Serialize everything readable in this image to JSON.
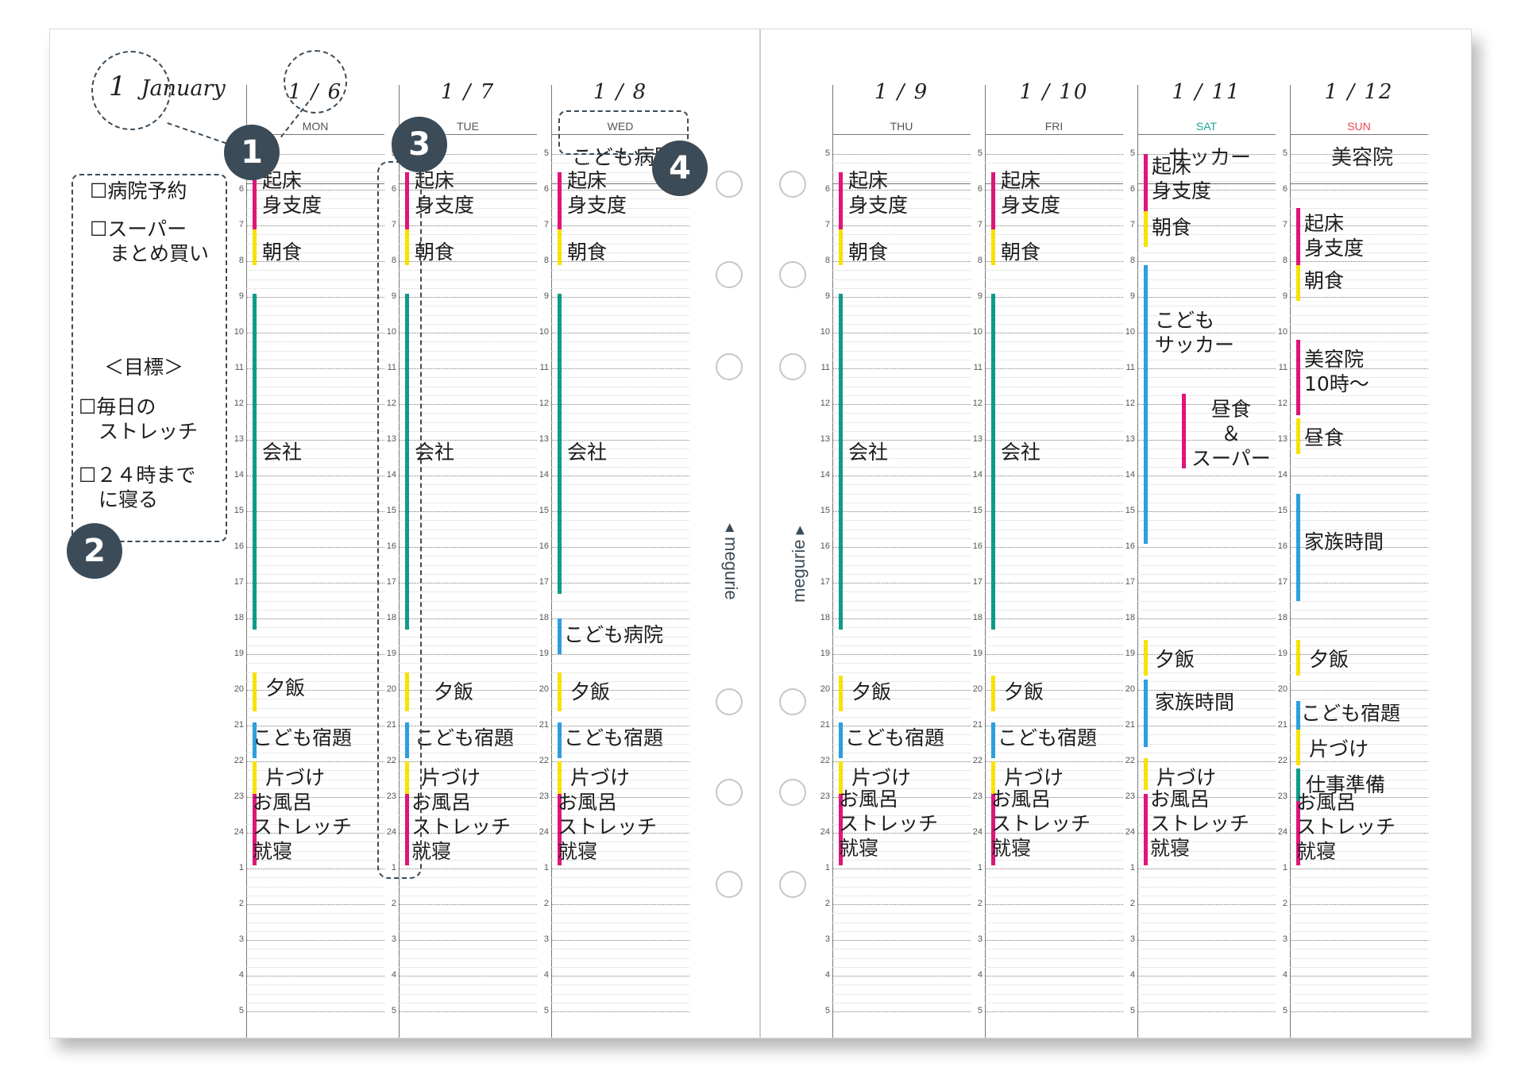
{
  "month": {
    "number": "1",
    "name": "January"
  },
  "brand": "megurie",
  "hour_labels": [
    "5",
    "6",
    "7",
    "8",
    "9",
    "10",
    "11",
    "12",
    "13",
    "14",
    "15",
    "16",
    "17",
    "18",
    "19",
    "20",
    "21",
    "22",
    "23",
    "24",
    "1",
    "2",
    "3",
    "4",
    "5"
  ],
  "sidebar": {
    "todos": [
      "☐病院予約",
      "☐スーパー\n　まとめ買い"
    ],
    "goal_title": "＜目標＞",
    "goals": [
      "☐毎日の\n　ストレッチ",
      "☐２４時まで\n　に寝る"
    ]
  },
  "badges": [
    "1",
    "2",
    "3",
    "4"
  ],
  "colors": {
    "pink": "#e0147a",
    "yellow": "#f7e200",
    "teal": "#0e9b8a",
    "blue": "#2b9fe0",
    "sat": "#1aa89a",
    "sun": "#e4484f"
  },
  "days": [
    {
      "date": "1 / 6",
      "weekday": "MON",
      "top": "",
      "events": [
        {
          "s": 5.5,
          "e": 7.9,
          "c": "pink",
          "t": "起床\n身支度",
          "y": 5.4,
          "dx": 20
        },
        {
          "s": 7.1,
          "e": 8.1,
          "c": "yellow",
          "t": "朝食",
          "y": 7.4,
          "dx": 20
        },
        {
          "s": 8.9,
          "e": 18.3,
          "c": "teal",
          "t": "会社",
          "y": 13.0,
          "dx": 20
        },
        {
          "s": 19.5,
          "e": 20.6,
          "c": "yellow",
          "t": "夕飯",
          "y": 19.6,
          "dx": 24
        },
        {
          "s": 20.9,
          "e": 21.9,
          "c": "blue",
          "t": "こども宿題",
          "y": 21.0,
          "dx": 8
        },
        {
          "s": 22.0,
          "e": 22.9,
          "c": "yellow",
          "t": "片づけ",
          "y": 22.1,
          "dx": 24
        },
        {
          "s": 22.9,
          "e": 24.9,
          "c": "pink",
          "t": "お風呂\nストレッチ\n就寝",
          "y": 22.8,
          "dx": 8
        }
      ]
    },
    {
      "date": "1 / 7",
      "weekday": "TUE",
      "top": "",
      "events": [
        {
          "s": 5.5,
          "e": 7.9,
          "c": "pink",
          "t": "起床\n身支度",
          "y": 5.4,
          "dx": 20
        },
        {
          "s": 7.1,
          "e": 8.1,
          "c": "yellow",
          "t": "朝食",
          "y": 7.4,
          "dx": 20
        },
        {
          "s": 8.9,
          "e": 18.3,
          "c": "teal",
          "t": "会社",
          "y": 13.0,
          "dx": 20
        },
        {
          "s": 19.5,
          "e": 20.6,
          "c": "yellow",
          "t": "夕飯",
          "y": 19.7,
          "dx": 44
        },
        {
          "s": 20.9,
          "e": 21.9,
          "c": "blue",
          "t": "こども宿題",
          "y": 21.0,
          "dx": 20
        },
        {
          "s": 22.0,
          "e": 22.9,
          "c": "yellow",
          "t": "片づけ",
          "y": 22.1,
          "dx": 28
        },
        {
          "s": 22.9,
          "e": 24.9,
          "c": "pink",
          "t": "お風呂\nストレッチ\n就寝",
          "y": 22.8,
          "dx": 16
        }
      ]
    },
    {
      "date": "1 / 8",
      "weekday": "WED",
      "top": "こども病院",
      "events": [
        {
          "s": 5.5,
          "e": 7.9,
          "c": "pink",
          "t": "起床\n身支度",
          "y": 5.4,
          "dx": 20
        },
        {
          "s": 7.1,
          "e": 8.1,
          "c": "yellow",
          "t": "朝食",
          "y": 7.4,
          "dx": 20
        },
        {
          "s": 8.9,
          "e": 17.3,
          "c": "teal",
          "t": "会社",
          "y": 13.0,
          "dx": 20
        },
        {
          "s": 18.0,
          "e": 19.0,
          "c": "blue",
          "t": "こども病院",
          "y": 18.1,
          "dx": 16
        },
        {
          "s": 19.5,
          "e": 20.6,
          "c": "yellow",
          "t": "夕飯",
          "y": 19.7,
          "dx": 24
        },
        {
          "s": 20.9,
          "e": 21.9,
          "c": "blue",
          "t": "こども宿題",
          "y": 21.0,
          "dx": 16
        },
        {
          "s": 22.0,
          "e": 22.9,
          "c": "yellow",
          "t": "片づけ",
          "y": 22.1,
          "dx": 24
        },
        {
          "s": 22.9,
          "e": 24.9,
          "c": "pink",
          "t": "お風呂\nストレッチ\n就寝",
          "y": 22.8,
          "dx": 8
        }
      ]
    },
    {
      "date": "1 / 9",
      "weekday": "THU",
      "top": "",
      "events": [
        {
          "s": 5.5,
          "e": 7.9,
          "c": "pink",
          "t": "起床\n身支度",
          "y": 5.4,
          "dx": 20
        },
        {
          "s": 7.1,
          "e": 8.1,
          "c": "yellow",
          "t": "朝食",
          "y": 7.4,
          "dx": 20
        },
        {
          "s": 8.9,
          "e": 18.3,
          "c": "teal",
          "t": "会社",
          "y": 13.0,
          "dx": 20
        },
        {
          "s": 19.6,
          "e": 20.6,
          "c": "yellow",
          "t": "夕飯",
          "y": 19.7,
          "dx": 24
        },
        {
          "s": 20.9,
          "e": 21.9,
          "c": "blue",
          "t": "こども宿題",
          "y": 21.0,
          "dx": 16
        },
        {
          "s": 22.0,
          "e": 22.9,
          "c": "yellow",
          "t": "片づけ",
          "y": 22.1,
          "dx": 24
        },
        {
          "s": 22.9,
          "e": 24.9,
          "c": "pink",
          "t": "お風呂\nストレッチ\n就寝",
          "y": 22.7,
          "dx": 8
        }
      ]
    },
    {
      "date": "1 / 10",
      "weekday": "FRI",
      "top": "",
      "events": [
        {
          "s": 5.5,
          "e": 7.9,
          "c": "pink",
          "t": "起床\n身支度",
          "y": 5.4,
          "dx": 20
        },
        {
          "s": 7.1,
          "e": 8.1,
          "c": "yellow",
          "t": "朝食",
          "y": 7.4,
          "dx": 20
        },
        {
          "s": 8.9,
          "e": 18.3,
          "c": "teal",
          "t": "会社",
          "y": 13.0,
          "dx": 20
        },
        {
          "s": 19.6,
          "e": 20.6,
          "c": "yellow",
          "t": "夕飯",
          "y": 19.7,
          "dx": 24
        },
        {
          "s": 20.9,
          "e": 21.9,
          "c": "blue",
          "t": "こども宿題",
          "y": 21.0,
          "dx": 16
        },
        {
          "s": 22.0,
          "e": 22.9,
          "c": "yellow",
          "t": "片づけ",
          "y": 22.1,
          "dx": 24
        },
        {
          "s": 22.9,
          "e": 24.9,
          "c": "pink",
          "t": "お風呂\nストレッチ\n就寝",
          "y": 22.7,
          "dx": 8
        }
      ]
    },
    {
      "date": "1 / 11",
      "weekday": "SAT",
      "top": "サッカー",
      "events": [
        {
          "s": 5.0,
          "e": 6.6,
          "c": "pink",
          "t": "起床\n身支度",
          "y": 5.0,
          "dx": 18
        },
        {
          "s": 6.6,
          "e": 7.6,
          "c": "yellow",
          "t": "朝食",
          "y": 6.7,
          "dx": 18
        },
        {
          "s": 8.1,
          "e": 15.9,
          "c": "blue",
          "t": "こども\nサッカー",
          "y": 9.3,
          "dx": 22
        },
        {
          "s": 11.7,
          "e": 13.8,
          "c": "pink",
          "t": "昼食\n＆\nスーパー",
          "y": 11.8,
          "dx": 56,
          "bx": 56
        },
        {
          "s": 18.6,
          "e": 19.6,
          "c": "yellow",
          "t": "夕飯",
          "y": 18.8,
          "dx": 22
        },
        {
          "s": 19.7,
          "e": 21.6,
          "c": "blue",
          "t": "家族時間",
          "y": 20.0,
          "dx": 22
        },
        {
          "s": 21.9,
          "e": 22.8,
          "c": "yellow",
          "t": "片づけ",
          "y": 22.1,
          "dx": 24
        },
        {
          "s": 22.9,
          "e": 24.9,
          "c": "pink",
          "t": "お風呂\nストレッチ\n就寝",
          "y": 22.7,
          "dx": 16
        }
      ]
    },
    {
      "date": "1 / 12",
      "weekday": "SUN",
      "top": "美容院",
      "events": [
        {
          "s": 6.5,
          "e": 8.1,
          "c": "pink",
          "t": "起床\n身支度",
          "y": 6.6,
          "dx": 18
        },
        {
          "s": 8.1,
          "e": 9.1,
          "c": "yellow",
          "t": "朝食",
          "y": 8.2,
          "dx": 18
        },
        {
          "s": 10.2,
          "e": 12.3,
          "c": "pink",
          "t": "美容院\n10時～",
          "y": 10.4,
          "dx": 18
        },
        {
          "s": 12.4,
          "e": 13.4,
          "c": "yellow",
          "t": "昼食",
          "y": 12.6,
          "dx": 18
        },
        {
          "s": 14.5,
          "e": 17.5,
          "c": "blue",
          "t": "家族時間",
          "y": 15.5,
          "dx": 18
        },
        {
          "s": 18.6,
          "e": 19.6,
          "c": "yellow",
          "t": "夕飯",
          "y": 18.8,
          "dx": 24
        },
        {
          "s": 20.3,
          "e": 21.1,
          "c": "blue",
          "t": "こども宿題",
          "y": 20.3,
          "dx": 14
        },
        {
          "s": 21.1,
          "e": 22.1,
          "c": "yellow",
          "t": "片づけ",
          "y": 21.3,
          "dx": 24
        },
        {
          "s": 22.2,
          "e": 23.1,
          "c": "teal",
          "t": "仕事準備",
          "y": 22.3,
          "dx": 20
        },
        {
          "s": 23.1,
          "e": 24.9,
          "c": "pink",
          "t": "お風呂\nストレッチ\n就寝",
          "y": 22.8,
          "dx": 8
        }
      ]
    }
  ]
}
